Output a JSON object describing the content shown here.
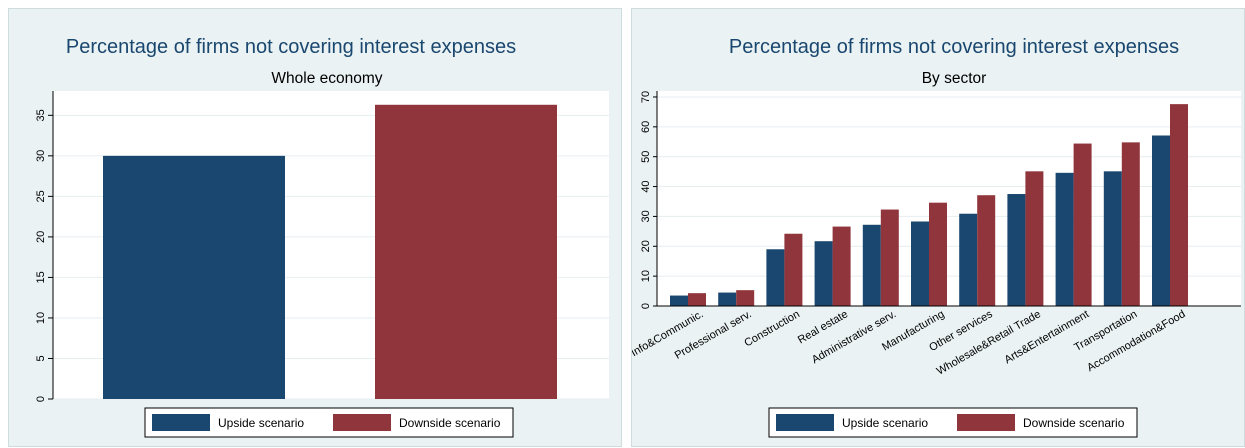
{
  "colors": {
    "upside": "#1a476f",
    "downside": "#90353b",
    "plot_bg": "#ffffff",
    "panel_bg": "#eaf2f3",
    "grid": "#e6eef0"
  },
  "chart_data": [
    {
      "type": "bar",
      "title": "Percentage of firms not covering interest expenses",
      "subtitle": "Whole economy",
      "categories": [
        ""
      ],
      "series": [
        {
          "name": "Upside scenario",
          "values": [
            30.0
          ]
        },
        {
          "name": "Downside scenario",
          "values": [
            36.3
          ]
        }
      ],
      "ylim": [
        0,
        38
      ],
      "yticks": [
        "0",
        "5",
        "10",
        "15",
        "20",
        "25",
        "30",
        "35"
      ],
      "grid": true,
      "legend_position": "bottom"
    },
    {
      "type": "bar",
      "title": "Percentage of firms not covering interest expenses",
      "subtitle": "By sector",
      "categories": [
        "Info&Communic.",
        "Professional serv.",
        "Construction",
        "Real estate",
        "Administrative serv.",
        "Manufacturing",
        "Other services",
        "Wholesale&Retail Trade",
        "Arts&Entertainment",
        "Transportation",
        "Accommodation&Food"
      ],
      "series": [
        {
          "name": "Upside scenario",
          "values": [
            3.5,
            4.5,
            19.0,
            21.7,
            27.2,
            28.3,
            30.9,
            37.5,
            44.6,
            45.1,
            57.1
          ]
        },
        {
          "name": "Downside scenario",
          "values": [
            4.3,
            5.3,
            24.2,
            26.6,
            32.3,
            34.6,
            37.1,
            45.1,
            54.4,
            54.8,
            67.6
          ]
        }
      ],
      "ylim": [
        0,
        72
      ],
      "yticks": [
        "0",
        "10",
        "20",
        "30",
        "40",
        "50",
        "60",
        "70"
      ],
      "grid": true,
      "legend_position": "bottom"
    }
  ]
}
